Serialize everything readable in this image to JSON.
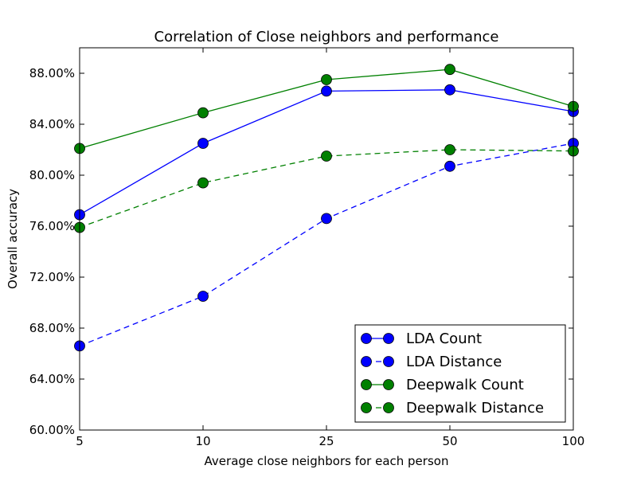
{
  "chart_data": {
    "type": "line",
    "title": "Correlation of Close neighbors and performance",
    "xlabel": "Average close neighbors for each person",
    "ylabel": "Overall accuracy",
    "categories": [
      "5",
      "10",
      "25",
      "50",
      "100"
    ],
    "ylim": [
      0.6,
      0.9
    ],
    "yticks": [
      "60.00%",
      "64.00%",
      "68.00%",
      "72.00%",
      "76.00%",
      "80.00%",
      "84.00%",
      "88.00%"
    ],
    "grid": false,
    "legend_position": "lower-right",
    "series": [
      {
        "name": "LDA Count",
        "color": "#0000ff",
        "dashed": false,
        "values": [
          0.769,
          0.825,
          0.866,
          0.867,
          0.85
        ]
      },
      {
        "name": "LDA Distance",
        "color": "#0000ff",
        "dashed": true,
        "values": [
          0.666,
          0.705,
          0.766,
          0.807,
          0.825
        ]
      },
      {
        "name": "Deepwalk Count",
        "color": "#008000",
        "dashed": false,
        "values": [
          0.821,
          0.849,
          0.875,
          0.883,
          0.854
        ]
      },
      {
        "name": "Deepwalk Distance",
        "color": "#008000",
        "dashed": true,
        "values": [
          0.759,
          0.794,
          0.815,
          0.82,
          0.819
        ]
      }
    ]
  }
}
